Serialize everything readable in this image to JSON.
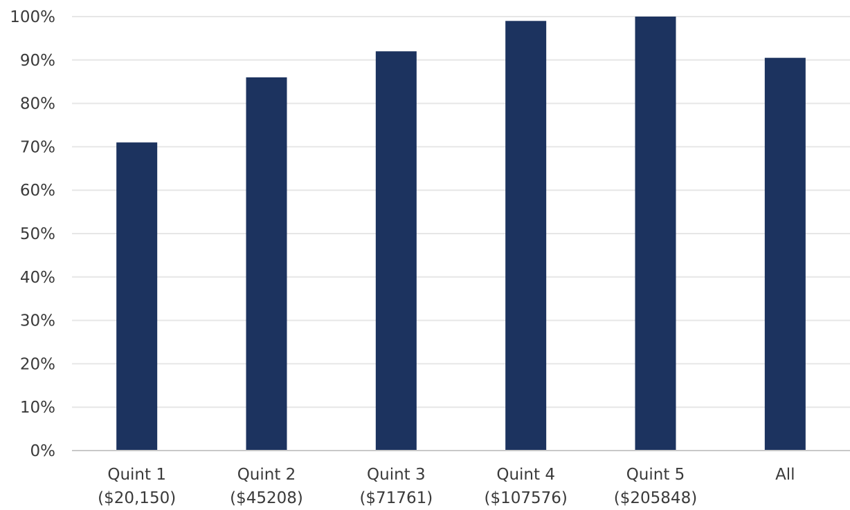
{
  "chart_data": {
    "type": "bar",
    "title": "",
    "xlabel": "",
    "ylabel": "",
    "categories": [
      [
        "Quint 1",
        "($20,150)"
      ],
      [
        "Quint 2",
        "($45208)"
      ],
      [
        "Quint 3",
        "($71761)"
      ],
      [
        "Quint 4",
        "($107576)"
      ],
      [
        "Quint 5",
        "($205848)"
      ],
      [
        "All"
      ]
    ],
    "values": [
      71,
      86,
      92,
      99,
      100,
      90.5
    ],
    "ylim": [
      0,
      100
    ],
    "yticks": [
      "0%",
      "10%",
      "20%",
      "30%",
      "40%",
      "50%",
      "60%",
      "70%",
      "80%",
      "90%",
      "100%"
    ],
    "grid": true,
    "legend": "none",
    "colors": {
      "bar": "#1c335f",
      "grid": "#e6e6e6",
      "axis": "#c8c8c8",
      "text": "#3a3a3a"
    }
  }
}
